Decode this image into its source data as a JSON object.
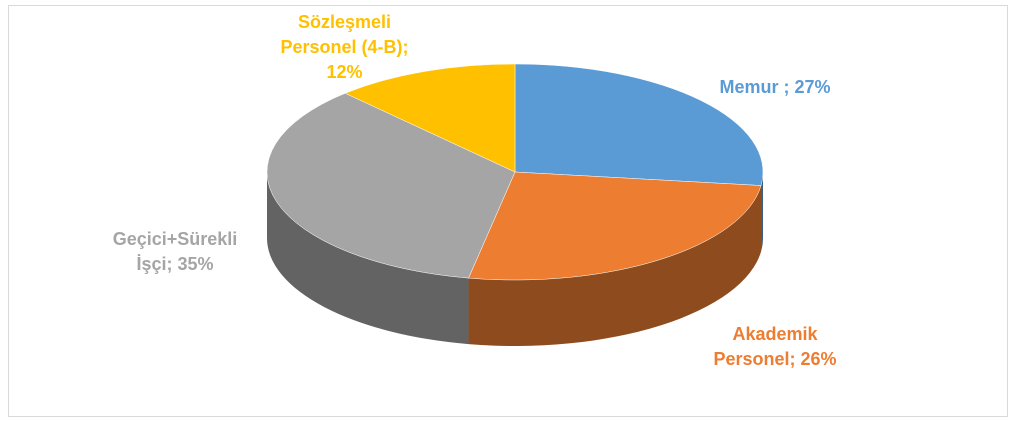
{
  "chart_data": {
    "type": "pie3d",
    "values": [
      27,
      26,
      35,
      12
    ],
    "value_labels": [
      "Memur ; 27%",
      "Akademik Personel; 26%",
      "Geçici+Sürekli İşçi; 35%",
      "Sözleşmeli Personel (4-B); 12%"
    ],
    "colors": [
      "#5b9bd5",
      "#ed7d31",
      "#a5a5a5",
      "#ffc000"
    ]
  }
}
